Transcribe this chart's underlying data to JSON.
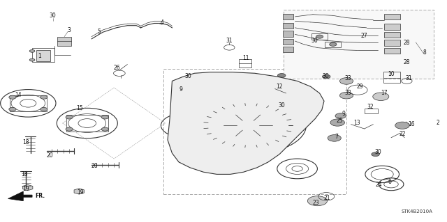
{
  "title": "",
  "background_color": "#ffffff",
  "fig_width": 6.4,
  "fig_height": 3.19,
  "dpi": 100,
  "diagram_code": "STK4B2010A",
  "line_color": "#333333",
  "label_fontsize": 5.5,
  "label_color": "#111111"
}
